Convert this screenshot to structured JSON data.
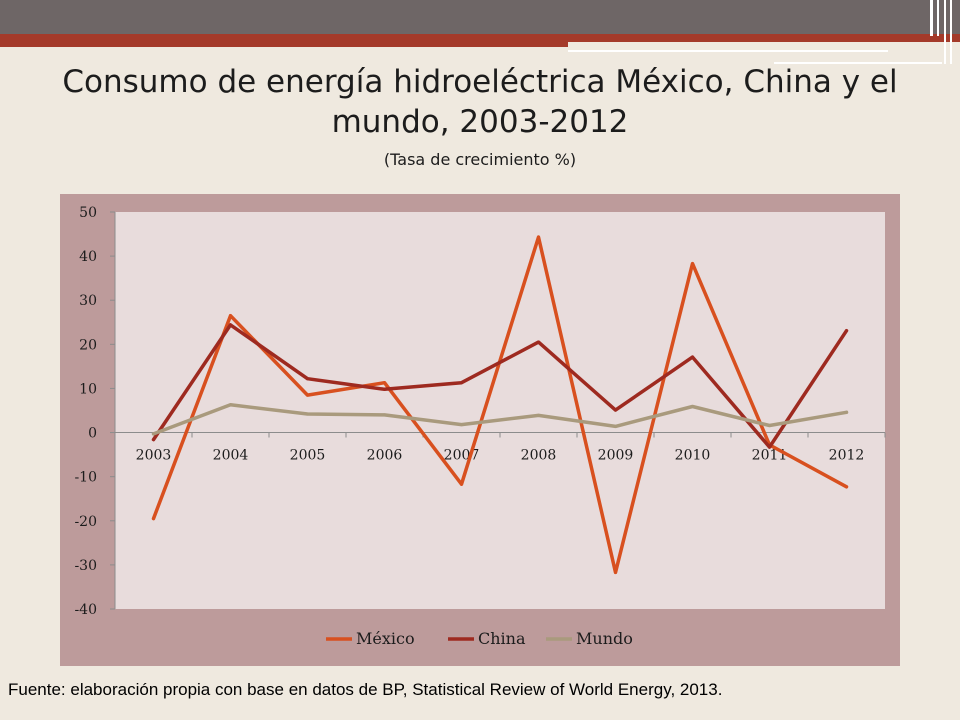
{
  "title": "Consumo de energía hidroeléctrica México, China y el mundo, 2003-2012",
  "subtitle": "(Tasa de crecimiento %)",
  "source": "Fuente: elaboración propia con base en datos de BP, Statistical Review of World Energy, 2013.",
  "colors": {
    "mexico": "#d8501f",
    "china": "#9e2a20",
    "mundo": "#a99a7d",
    "plot_bg": "#e8dcdc",
    "panel_bg": "#bd9b9b"
  },
  "chart_data": {
    "type": "line",
    "title": "Consumo de energía hidroeléctrica México, China y el mundo, 2003-2012",
    "subtitle": "(Tasa de crecimiento %)",
    "categories": [
      "2003",
      "2004",
      "2005",
      "2006",
      "2007",
      "2008",
      "2009",
      "2010",
      "2011",
      "2012"
    ],
    "ylim": [
      -40,
      50
    ],
    "yticks": [
      50,
      40,
      30,
      20,
      10,
      0,
      -10,
      -20,
      -30,
      -40
    ],
    "ytick_labels": [
      "50",
      "40",
      "30",
      "20",
      "10",
      "0",
      "-10",
      "-20",
      "-30",
      "-40"
    ],
    "grid": false,
    "legend_position": "bottom",
    "series": [
      {
        "name": "México",
        "values": [
          -19.5,
          26.5,
          8.5,
          11.3,
          -11.7,
          44.3,
          -31.7,
          38.3,
          -2.8,
          -12.3
        ]
      },
      {
        "name": "China",
        "values": [
          -1.6,
          24.4,
          12.2,
          9.8,
          11.3,
          20.5,
          5.1,
          17.1,
          -3.3,
          23.1
        ]
      },
      {
        "name": "Mundo",
        "values": [
          -0.3,
          6.3,
          4.2,
          4.0,
          1.8,
          3.9,
          1.4,
          5.9,
          1.6,
          4.6
        ]
      }
    ]
  }
}
